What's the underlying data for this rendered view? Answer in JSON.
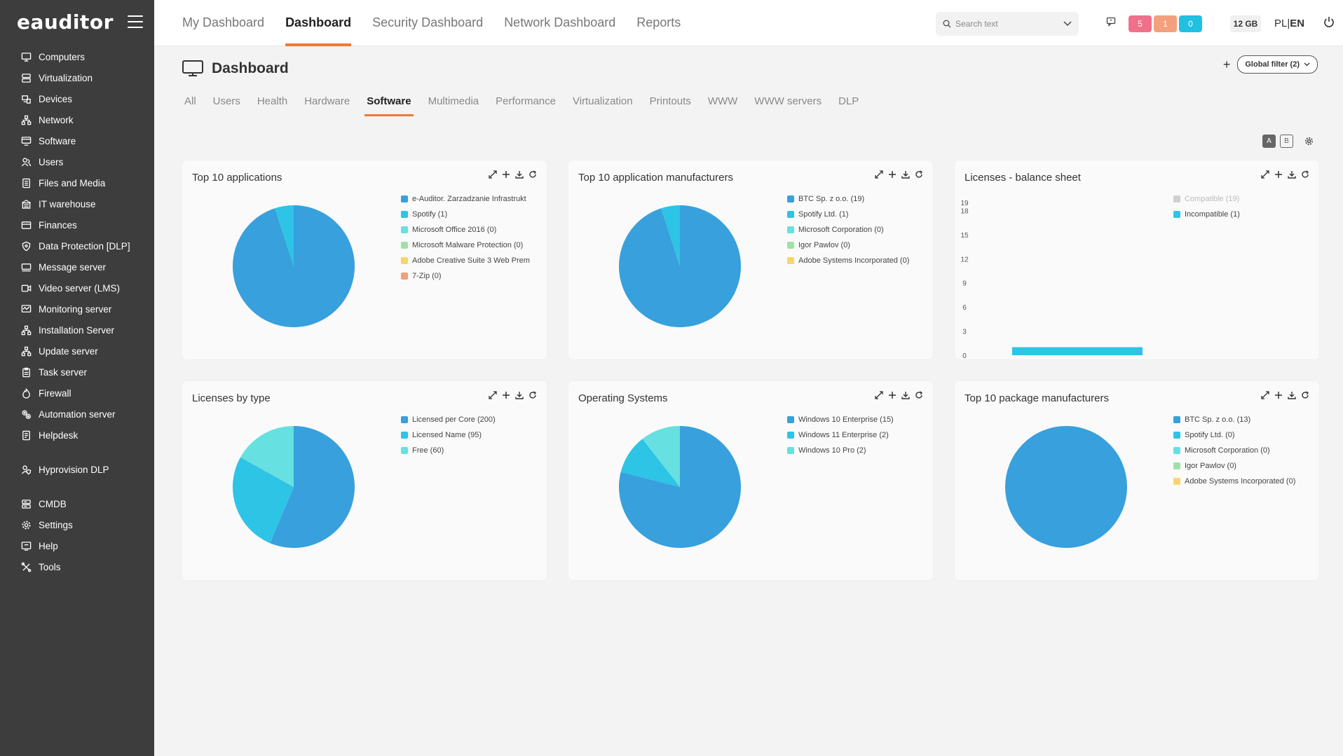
{
  "app": {
    "logo": "eauditor"
  },
  "sidebar": {
    "items": [
      {
        "label": "Computers",
        "icon": "monitor-icon"
      },
      {
        "label": "Virtualization",
        "icon": "server-icon"
      },
      {
        "label": "Devices",
        "icon": "devices-icon"
      },
      {
        "label": "Network",
        "icon": "network-icon"
      },
      {
        "label": "Software",
        "icon": "software-icon"
      },
      {
        "label": "Users",
        "icon": "users-icon"
      },
      {
        "label": "Files and Media",
        "icon": "files-icon"
      },
      {
        "label": "IT warehouse",
        "icon": "warehouse-icon"
      },
      {
        "label": "Finances",
        "icon": "finances-icon"
      },
      {
        "label": "Data Protection [DLP]",
        "icon": "shield-icon"
      },
      {
        "label": "Message server",
        "icon": "message-icon"
      },
      {
        "label": "Video server (LMS)",
        "icon": "video-icon"
      },
      {
        "label": "Monitoring server",
        "icon": "monitoring-icon"
      },
      {
        "label": "Installation Server",
        "icon": "network-icon"
      },
      {
        "label": "Update server",
        "icon": "network-icon"
      },
      {
        "label": "Task server",
        "icon": "clipboard-icon"
      },
      {
        "label": "Firewall",
        "icon": "firewall-icon"
      },
      {
        "label": "Automation server",
        "icon": "automation-icon"
      },
      {
        "label": "Helpdesk",
        "icon": "helpdesk-icon"
      }
    ],
    "items2": [
      {
        "label": "Hyprovision DLP",
        "icon": "user-shield-icon"
      }
    ],
    "items3": [
      {
        "label": "CMDB",
        "icon": "database-icon"
      },
      {
        "label": "Settings",
        "icon": "gear-icon"
      },
      {
        "label": "Help",
        "icon": "help-icon"
      },
      {
        "label": "Tools",
        "icon": "tools-icon"
      }
    ]
  },
  "topnav": {
    "tabs": [
      "My Dashboard",
      "Dashboard",
      "Security Dashboard",
      "Network Dashboard",
      "Reports"
    ],
    "active": "Dashboard",
    "search_placeholder": "Search text",
    "badges": [
      {
        "value": "5",
        "color": "#f0708a"
      },
      {
        "value": "1",
        "color": "#f4a07c"
      },
      {
        "value": "0",
        "color": "#1fc0e0"
      }
    ],
    "memory": "12 GB",
    "lang_pl": "PL",
    "lang_sep": "|",
    "lang_en": "EN"
  },
  "page": {
    "title": "Dashboard",
    "global_filter": "Global filter (2)",
    "subtabs": [
      "All",
      "Users",
      "Health",
      "Hardware",
      "Software",
      "Multimedia",
      "Performance",
      "Virtualization",
      "Printouts",
      "WWW",
      "WWW servers",
      "DLP"
    ],
    "active_subtab": "Software",
    "toggle_a": "A",
    "toggle_b": "B"
  },
  "colors": {
    "accent": "#ee7a33",
    "blue": "#38a0dc",
    "cyan": "#2dc4e6",
    "teal": "#66e0e0",
    "green": "#9fe0a8",
    "yellow": "#f7d56a",
    "salmon": "#f3a07a",
    "grey": "#d0d0d0"
  },
  "chart_data": [
    {
      "type": "pie",
      "title": "Top 10 applications",
      "series": [
        {
          "name": "e-Auditor. Zarzadzanie Infrastrukt",
          "value": 19,
          "color": "#38a0dc"
        },
        {
          "name": "Spotify (1)",
          "value": 1,
          "color": "#2dc4e6"
        },
        {
          "name": "Microsoft Office 2016 (0)",
          "value": 0,
          "color": "#66e0e0"
        },
        {
          "name": "Microsoft Malware Protection (0)",
          "value": 0,
          "color": "#9fe0a8"
        },
        {
          "name": "Adobe Creative Suite 3 Web Prem",
          "value": 0,
          "color": "#f7d56a"
        },
        {
          "name": "7-Zip (0)",
          "value": 0,
          "color": "#f3a07a"
        }
      ]
    },
    {
      "type": "pie",
      "title": "Top 10 application manufacturers",
      "series": [
        {
          "name": "BTC Sp. z o.o. (19)",
          "value": 19,
          "color": "#38a0dc"
        },
        {
          "name": "Spotify Ltd. (1)",
          "value": 1,
          "color": "#2dc4e6"
        },
        {
          "name": "Microsoft Corporation (0)",
          "value": 0,
          "color": "#66e0e0"
        },
        {
          "name": "Igor Pawlov (0)",
          "value": 0,
          "color": "#9fe0a8"
        },
        {
          "name": "Adobe Systems Incorporated (0)",
          "value": 0,
          "color": "#f7d56a"
        }
      ]
    },
    {
      "type": "bar",
      "title": "Licenses - balance sheet",
      "yticks": [
        "0",
        "3",
        "6",
        "9",
        "12",
        "15",
        "18",
        "19"
      ],
      "ylim": [
        0,
        19
      ],
      "series": [
        {
          "name": "Compatible (19)",
          "value": 19,
          "color": "#d0d0d0",
          "hidden": true
        },
        {
          "name": "Incompatible (1)",
          "value": 1,
          "color": "#2dc4e6"
        }
      ]
    },
    {
      "type": "pie",
      "title": "Licenses by type",
      "series": [
        {
          "name": "Licensed per Core (200)",
          "value": 200,
          "color": "#38a0dc"
        },
        {
          "name": "Licensed Name (95)",
          "value": 95,
          "color": "#2dc4e6"
        },
        {
          "name": "Free (60)",
          "value": 60,
          "color": "#66e0e0"
        }
      ]
    },
    {
      "type": "pie",
      "title": "Operating Systems",
      "series": [
        {
          "name": "Windows 10 Enterprise (15)",
          "value": 15,
          "color": "#38a0dc"
        },
        {
          "name": "Windows 11 Enterprise (2)",
          "value": 2,
          "color": "#2dc4e6"
        },
        {
          "name": "Windows 10 Pro (2)",
          "value": 2,
          "color": "#66e0e0"
        }
      ]
    },
    {
      "type": "pie",
      "title": "Top 10 package manufacturers",
      "series": [
        {
          "name": "BTC Sp. z o.o. (13)",
          "value": 13,
          "color": "#38a0dc"
        },
        {
          "name": "Spotify Ltd. (0)",
          "value": 0,
          "color": "#2dc4e6"
        },
        {
          "name": "Microsoft Corporation (0)",
          "value": 0,
          "color": "#66e0e0"
        },
        {
          "name": "Igor Pawlov (0)",
          "value": 0,
          "color": "#9fe0a8"
        },
        {
          "name": "Adobe Systems Incorporated (0)",
          "value": 0,
          "color": "#f7d56a"
        }
      ]
    }
  ]
}
